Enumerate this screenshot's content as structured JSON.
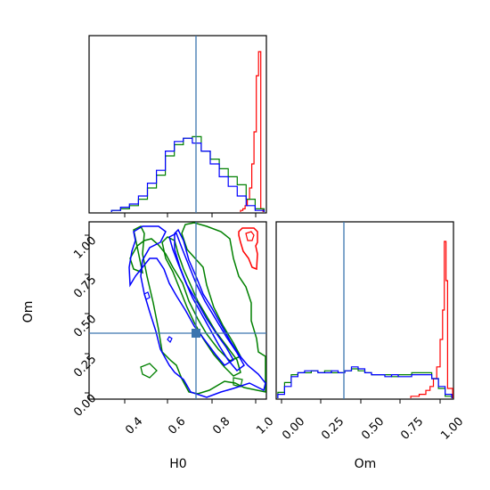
{
  "chart_data": {
    "type": "corner",
    "parameters": [
      "H0",
      "Om"
    ],
    "truth": {
      "H0": 0.72,
      "Om": 0.38,
      "color": "#3b75af"
    },
    "series_colors": [
      "#ff0000",
      "#008000",
      "#0000ff"
    ],
    "panels": [
      {
        "id": "hist-H0",
        "type": "step-histogram",
        "xlim": [
          0.24,
          1.03
        ],
        "series": [
          {
            "color": "#ff0000",
            "x": [
              0.92,
              0.93,
              0.94,
              0.95,
              0.96,
              0.97,
              0.98,
              0.99,
              1.0,
              1.01
            ],
            "y": [
              0.01,
              0.02,
              0.04,
              0.08,
              0.15,
              0.3,
              0.5,
              0.85,
              1.0,
              0.02
            ]
          },
          {
            "color": "#008000",
            "x": [
              0.36,
              0.4,
              0.44,
              0.48,
              0.52,
              0.56,
              0.6,
              0.64,
              0.68,
              0.72,
              0.76,
              0.8,
              0.84,
              0.88,
              0.92,
              0.96,
              1.0
            ],
            "y": [
              0.01,
              0.02,
              0.04,
              0.08,
              0.15,
              0.23,
              0.35,
              0.42,
              0.46,
              0.47,
              0.38,
              0.33,
              0.27,
              0.22,
              0.17,
              0.08,
              0.02
            ]
          },
          {
            "color": "#0000ff",
            "x": [
              0.36,
              0.4,
              0.44,
              0.48,
              0.52,
              0.56,
              0.6,
              0.64,
              0.68,
              0.72,
              0.76,
              0.8,
              0.84,
              0.88,
              0.92,
              0.96,
              1.0
            ],
            "y": [
              0.01,
              0.03,
              0.05,
              0.1,
              0.18,
              0.26,
              0.38,
              0.44,
              0.46,
              0.43,
              0.38,
              0.3,
              0.22,
              0.16,
              0.1,
              0.04,
              0.01
            ]
          }
        ]
      },
      {
        "id": "contour-H0-Om",
        "type": "contour",
        "xlim": [
          0.24,
          1.03
        ],
        "ylim": [
          -0.04,
          1.08
        ],
        "xticks": [
          "0.4",
          "0.6",
          "0.8",
          "1.0"
        ],
        "yticks": [
          "0.00",
          "0.25",
          "0.50",
          "0.75",
          "1.00"
        ]
      },
      {
        "id": "hist-Om",
        "type": "step-histogram",
        "xlim": [
          -0.03,
          1.03
        ],
        "xticks": [
          "0.00",
          "0.25",
          "0.50",
          "0.75",
          "1.00"
        ],
        "series": [
          {
            "color": "#ff0000",
            "x": [
              0.8,
              0.85,
              0.88,
              0.9,
              0.92,
              0.94,
              0.96,
              0.97,
              0.98,
              0.99,
              1.0
            ],
            "y": [
              0.01,
              0.02,
              0.04,
              0.06,
              0.1,
              0.16,
              0.3,
              0.45,
              0.8,
              0.6,
              0.05
            ]
          },
          {
            "color": "#008000",
            "x": [
              0.0,
              0.04,
              0.08,
              0.12,
              0.16,
              0.2,
              0.24,
              0.28,
              0.32,
              0.36,
              0.4,
              0.44,
              0.48,
              0.52,
              0.56,
              0.6,
              0.64,
              0.68,
              0.72,
              0.76,
              0.8,
              0.84,
              0.88,
              0.92,
              0.96,
              1.0
            ],
            "y": [
              0.03,
              0.08,
              0.12,
              0.13,
              0.13,
              0.14,
              0.13,
              0.14,
              0.13,
              0.13,
              0.14,
              0.15,
              0.14,
              0.13,
              0.12,
              0.12,
              0.12,
              0.11,
              0.12,
              0.12,
              0.13,
              0.13,
              0.13,
              0.1,
              0.05,
              0.01
            ]
          },
          {
            "color": "#0000ff",
            "x": [
              0.0,
              0.04,
              0.08,
              0.12,
              0.16,
              0.2,
              0.24,
              0.28,
              0.32,
              0.36,
              0.4,
              0.44,
              0.48,
              0.52,
              0.56,
              0.6,
              0.64,
              0.68,
              0.72,
              0.76,
              0.8,
              0.84,
              0.88,
              0.92,
              0.96,
              1.0
            ],
            "y": [
              0.02,
              0.06,
              0.11,
              0.13,
              0.14,
              0.14,
              0.13,
              0.13,
              0.14,
              0.13,
              0.14,
              0.16,
              0.15,
              0.13,
              0.12,
              0.12,
              0.11,
              0.12,
              0.11,
              0.11,
              0.12,
              0.12,
              0.12,
              0.1,
              0.06,
              0.02
            ]
          }
        ]
      }
    ],
    "xlabel_left": "H0",
    "ylabel_left": "Om",
    "xlabel_right": "Om"
  }
}
